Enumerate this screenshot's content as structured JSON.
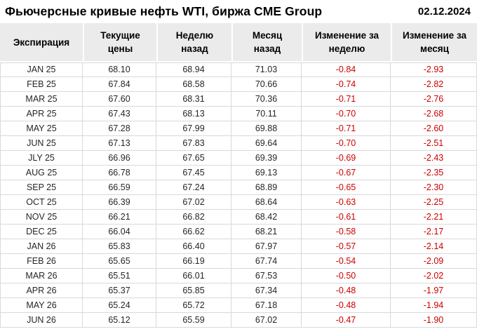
{
  "header": {
    "title": "Фьючерсные кривые нефть WTI, биржа CME Group",
    "date": "02.12.2024"
  },
  "colors": {
    "negative_change": "#cc0000",
    "header_background": "#ebebeb",
    "grid_line": "#d9d9d9"
  },
  "chart_data": {
    "type": "table",
    "title": "Фьючерсные кривые нефть WTI, биржа CME Group",
    "date": "02.12.2024",
    "columns": [
      "Экспирация",
      "Текущие\nцены",
      "Неделю\nназад",
      "Месяц\nназад",
      "Изменение за\nнеделю",
      "Изменение за\nмесяц"
    ],
    "rows": [
      [
        "JAN 25",
        "68.10",
        "68.94",
        "71.03",
        "-0.84",
        "-2.93"
      ],
      [
        "FEB 25",
        "67.84",
        "68.58",
        "70.66",
        "-0.74",
        "-2.82"
      ],
      [
        "MAR 25",
        "67.60",
        "68.31",
        "70.36",
        "-0.71",
        "-2.76"
      ],
      [
        "APR 25",
        "67.43",
        "68.13",
        "70.11",
        "-0.70",
        "-2.68"
      ],
      [
        "MAY 25",
        "67.28",
        "67.99",
        "69.88",
        "-0.71",
        "-2.60"
      ],
      [
        "JUN 25",
        "67.13",
        "67.83",
        "69.64",
        "-0.70",
        "-2.51"
      ],
      [
        "JLY 25",
        "66.96",
        "67.65",
        "69.39",
        "-0.69",
        "-2.43"
      ],
      [
        "AUG 25",
        "66.78",
        "67.45",
        "69.13",
        "-0.67",
        "-2.35"
      ],
      [
        "SEP 25",
        "66.59",
        "67.24",
        "68.89",
        "-0.65",
        "-2.30"
      ],
      [
        "OCT 25",
        "66.39",
        "67.02",
        "68.64",
        "-0.63",
        "-2.25"
      ],
      [
        "NOV 25",
        "66.21",
        "66.82",
        "68.42",
        "-0.61",
        "-2.21"
      ],
      [
        "DEC 25",
        "66.04",
        "66.62",
        "68.21",
        "-0.58",
        "-2.17"
      ],
      [
        "JAN 26",
        "65.83",
        "66.40",
        "67.97",
        "-0.57",
        "-2.14"
      ],
      [
        "FEB 26",
        "65.65",
        "66.19",
        "67.74",
        "-0.54",
        "-2.09"
      ],
      [
        "MAR 26",
        "65.51",
        "66.01",
        "67.53",
        "-0.50",
        "-2.02"
      ],
      [
        "APR 26",
        "65.37",
        "65.85",
        "67.34",
        "-0.48",
        "-1.97"
      ],
      [
        "MAY 26",
        "65.24",
        "65.72",
        "67.18",
        "-0.48",
        "-1.94"
      ],
      [
        "JUN 26",
        "65.12",
        "65.59",
        "67.02",
        "-0.47",
        "-1.90"
      ]
    ]
  }
}
